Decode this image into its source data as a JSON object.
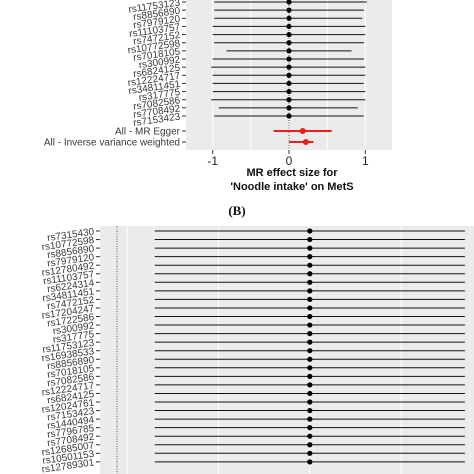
{
  "panel_b_label": "(B)",
  "chart_data": [
    {
      "type": "forest",
      "panel": "A",
      "xlabel_line1": "MR effect size for",
      "xlabel_line2": "'Noodle intake' on MetS",
      "xticks": [
        "-1",
        "0",
        "1"
      ],
      "xlim": [
        -1.35,
        1.35
      ],
      "snps": [
        {
          "label": "rs7153423",
          "estimate": 0.0,
          "lower": -0.98,
          "upper": 0.98
        },
        {
          "label": "rs7708492",
          "estimate": 0.0,
          "lower": -0.92,
          "upper": 0.9
        },
        {
          "label": "rs7082586",
          "estimate": 0.0,
          "lower": -1.02,
          "upper": 1.0
        },
        {
          "label": "rs317775",
          "estimate": 0.0,
          "lower": -1.0,
          "upper": 1.0
        },
        {
          "label": "rs34811451",
          "estimate": 0.0,
          "lower": -1.0,
          "upper": 0.98
        },
        {
          "label": "rs12224717",
          "estimate": 0.0,
          "lower": -1.0,
          "upper": 1.0
        },
        {
          "label": "rs6824125",
          "estimate": 0.0,
          "lower": -1.02,
          "upper": 1.0
        },
        {
          "label": "rs300992",
          "estimate": 0.0,
          "lower": -1.0,
          "upper": 0.98
        },
        {
          "label": "rs7018105",
          "estimate": 0.0,
          "lower": -0.82,
          "upper": 0.82
        },
        {
          "label": "rs10772598",
          "estimate": 0.0,
          "lower": -0.98,
          "upper": 0.98
        },
        {
          "label": "rs7472152",
          "estimate": 0.0,
          "lower": -1.0,
          "upper": 1.0
        },
        {
          "label": "rs11103757",
          "estimate": 0.0,
          "lower": -1.0,
          "upper": 1.0
        },
        {
          "label": "rs7979120",
          "estimate": 0.0,
          "lower": -0.98,
          "upper": 0.96
        },
        {
          "label": "rs8856890",
          "estimate": 0.0,
          "lower": -0.98,
          "upper": 0.98
        },
        {
          "label": "rs11753123",
          "estimate": 0.0,
          "lower": -0.98,
          "upper": 1.02
        }
      ],
      "summary": [
        {
          "label": "All - MR Egger",
          "estimate": 0.18,
          "lower": -0.2,
          "upper": 0.56,
          "color": "#e8211b"
        },
        {
          "label": "All - Inverse variance weighted",
          "estimate": 0.22,
          "lower": 0.0,
          "upper": 0.32,
          "color": "#e8211b"
        }
      ]
    },
    {
      "type": "forest",
      "panel": "B",
      "xlim": [
        -2.3,
        1.8
      ],
      "snps": [
        {
          "label": "rs7315430",
          "estimate": 0.0,
          "lower": -1.7,
          "upper": 1.7
        },
        {
          "label": "rs10772598",
          "estimate": 0.0,
          "lower": -1.7,
          "upper": 1.7
        },
        {
          "label": "rs8856890",
          "estimate": 0.0,
          "lower": -1.7,
          "upper": 1.7
        },
        {
          "label": "rs7979120",
          "estimate": 0.0,
          "lower": -1.7,
          "upper": 1.7
        },
        {
          "label": "rs12780492",
          "estimate": 0.0,
          "lower": -1.7,
          "upper": 1.7
        },
        {
          "label": "rs11103757",
          "estimate": 0.0,
          "lower": -1.7,
          "upper": 1.7
        },
        {
          "label": "rs6224314",
          "estimate": 0.0,
          "lower": -1.7,
          "upper": 1.7
        },
        {
          "label": "rs34811451",
          "estimate": 0.0,
          "lower": -1.7,
          "upper": 1.7
        },
        {
          "label": "rs7472152",
          "estimate": 0.0,
          "lower": -1.7,
          "upper": 1.7
        },
        {
          "label": "rs17204247",
          "estimate": 0.0,
          "lower": -1.7,
          "upper": 1.7
        },
        {
          "label": "rs1722586",
          "estimate": 0.0,
          "lower": -1.7,
          "upper": 1.7
        },
        {
          "label": "rs300992",
          "estimate": 0.0,
          "lower": -1.7,
          "upper": 1.7
        },
        {
          "label": "rs317775",
          "estimate": 0.0,
          "lower": -1.7,
          "upper": 1.7
        },
        {
          "label": "rs11753123",
          "estimate": 0.0,
          "lower": -1.7,
          "upper": 1.7
        },
        {
          "label": "rs16938533",
          "estimate": 0.0,
          "lower": -1.7,
          "upper": 1.7
        },
        {
          "label": "rs8856890",
          "estimate": 0.0,
          "lower": -1.7,
          "upper": 1.7
        },
        {
          "label": "rs7018105",
          "estimate": 0.0,
          "lower": -1.7,
          "upper": 1.7
        },
        {
          "label": "rs7082586",
          "estimate": 0.0,
          "lower": -1.7,
          "upper": 1.7
        },
        {
          "label": "rs12224717",
          "estimate": 0.0,
          "lower": -1.7,
          "upper": 1.7
        },
        {
          "label": "rs6824125",
          "estimate": 0.0,
          "lower": -1.7,
          "upper": 1.7
        },
        {
          "label": "rs12024761",
          "estimate": 0.0,
          "lower": -1.7,
          "upper": 1.7
        },
        {
          "label": "rs7153423",
          "estimate": 0.0,
          "lower": -1.7,
          "upper": 1.7
        },
        {
          "label": "rs1440494",
          "estimate": 0.0,
          "lower": -1.7,
          "upper": 1.7
        },
        {
          "label": "rs7796785",
          "estimate": 0.0,
          "lower": -1.7,
          "upper": 1.7
        },
        {
          "label": "rs7708492",
          "estimate": 0.0,
          "lower": -1.7,
          "upper": 1.7
        },
        {
          "label": "rs12685007",
          "estimate": 0.0,
          "lower": -1.7,
          "upper": 1.7
        },
        {
          "label": "rs10501153",
          "estimate": 0.0,
          "lower": -1.7,
          "upper": 1.7
        },
        {
          "label": "rs12789301",
          "estimate": 0.0,
          "lower": -1.7,
          "upper": 1.7
        }
      ]
    }
  ]
}
